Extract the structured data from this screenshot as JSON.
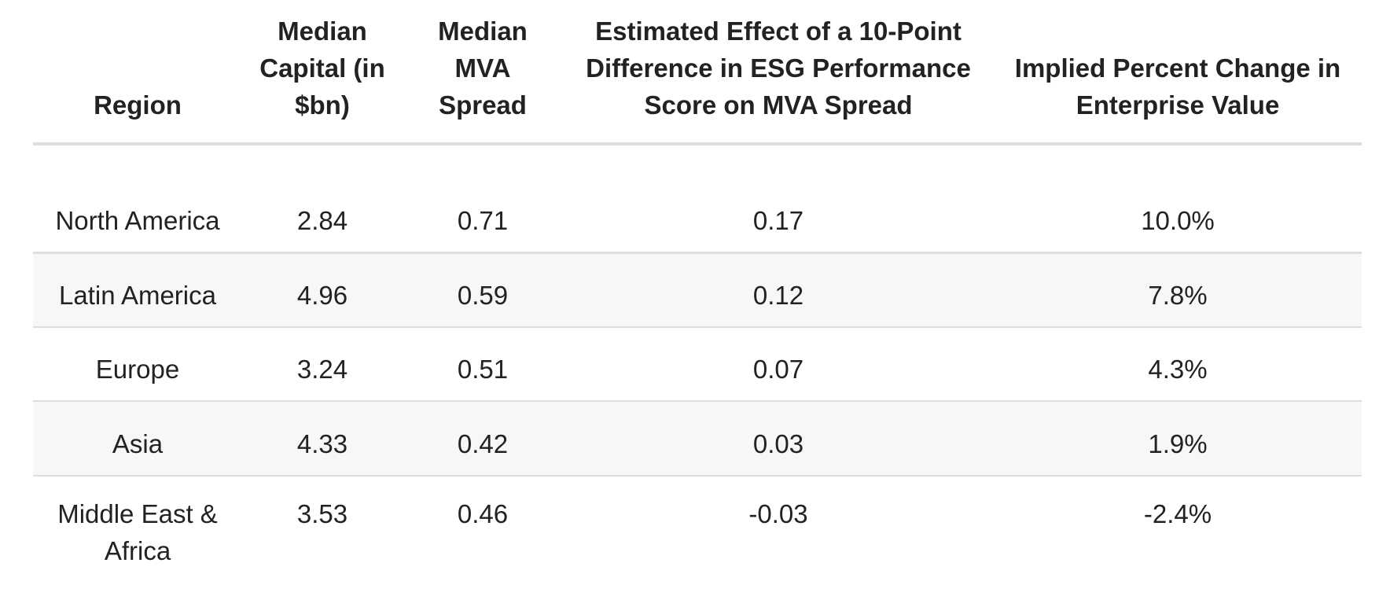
{
  "table": {
    "headers": {
      "region": "Region",
      "capital": "Median Capital (in $bn)",
      "spread": "Median MVA Spread",
      "effect": "Estimated Effect of a 10-Point Difference in ESG Performance Score on MVA Spread",
      "implied": "Implied Percent Change in Enterprise Value"
    },
    "rows": [
      {
        "region": "North America",
        "capital": "2.84",
        "spread": "0.71",
        "effect": "0.17",
        "implied": "10.0%"
      },
      {
        "region": "Latin America",
        "capital": "4.96",
        "spread": "0.59",
        "effect": "0.12",
        "implied": "7.8%"
      },
      {
        "region": "Europe",
        "capital": "3.24",
        "spread": "0.51",
        "effect": "0.07",
        "implied": "4.3%"
      },
      {
        "region": "Asia",
        "capital": "4.33",
        "spread": "0.42",
        "effect": "0.03",
        "implied": "1.9%"
      },
      {
        "region": "Middle East & Africa",
        "capital": "3.53",
        "spread": "0.46",
        "effect": "-0.03",
        "implied": "-2.4%"
      }
    ]
  },
  "colors": {
    "text": "#222222",
    "row_stripe": "#f7f7f7",
    "rule": "#dddddd"
  }
}
